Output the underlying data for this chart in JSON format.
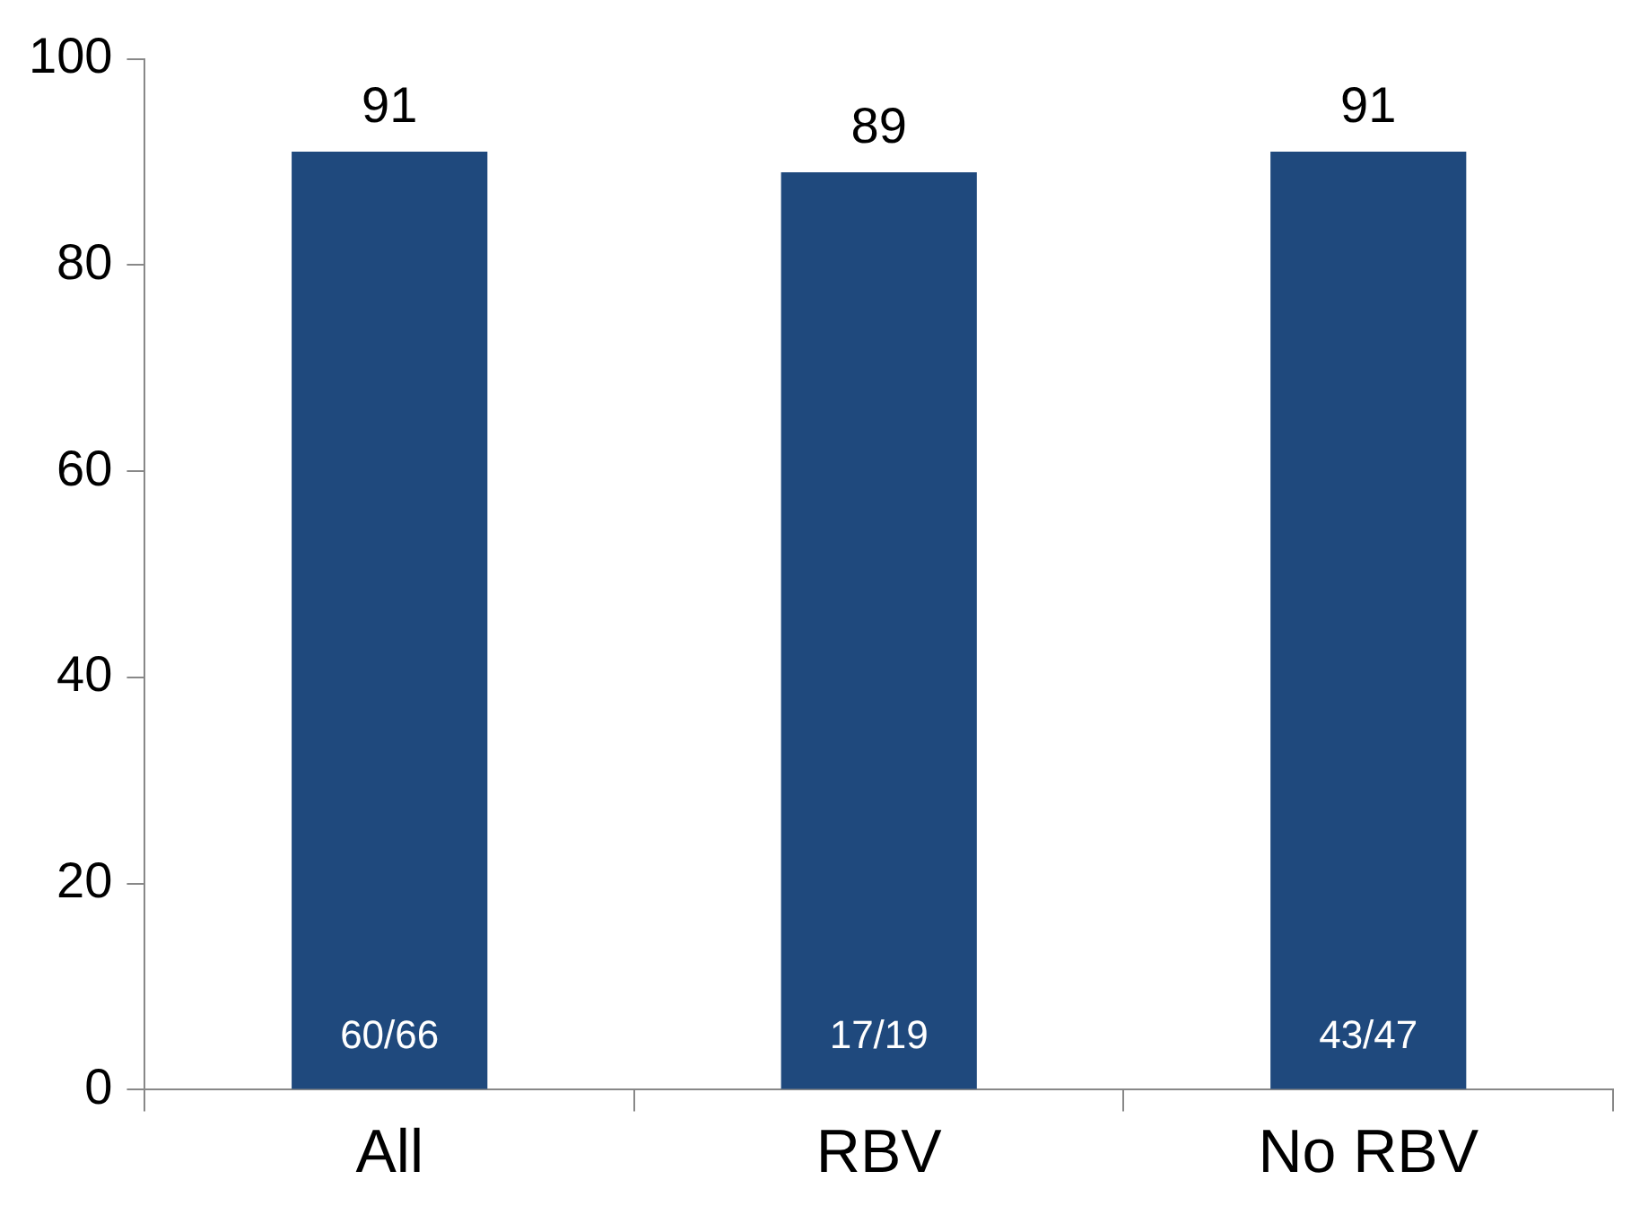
{
  "chart_data": {
    "type": "bar",
    "categories": [
      "All",
      "RBV",
      "No RBV"
    ],
    "values": [
      91,
      89,
      91
    ],
    "color": "#1f497d",
    "ylim": [
      0,
      100
    ],
    "yticks": [
      0,
      20,
      40,
      60,
      80,
      100
    ],
    "grid": false,
    "legend": false,
    "data_labels": true,
    "annotations": [
      "60/66",
      "17/19",
      "43/47"
    ]
  }
}
